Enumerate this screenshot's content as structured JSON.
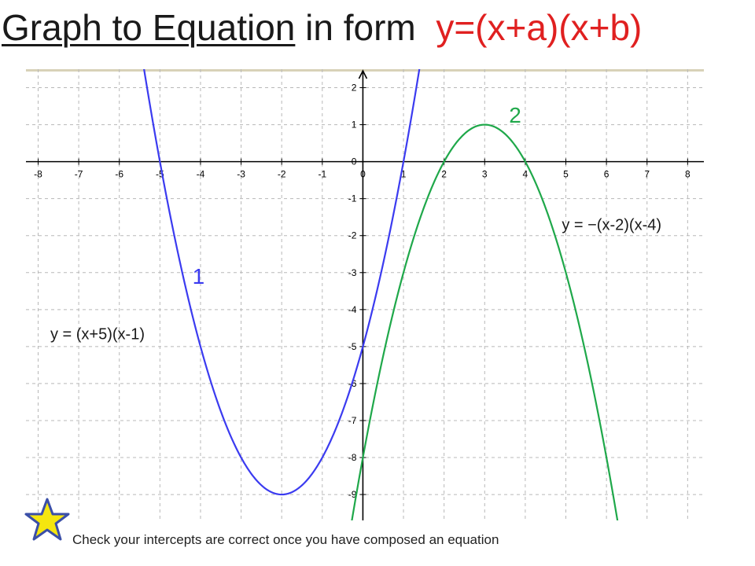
{
  "slide": {
    "title_main": "Graph to Equation",
    "title_rest": "in form",
    "title_form": "y=(x+a)(x+b)",
    "footer": "Check your intercepts are correct once you have composed an equation",
    "colors": {
      "title": "#1a1a1a",
      "form": "#e02020",
      "star_fill": "#f5e60f",
      "star_stroke": "#3b4fa8"
    }
  },
  "chart_data": {
    "type": "line",
    "xlim": [
      -8.3,
      8.4
    ],
    "ylim": [
      -9.7,
      2.5
    ],
    "grid": true,
    "x_ticks": [
      "-8",
      "-7",
      "-6",
      "-5",
      "-4",
      "-3",
      "-2",
      "-1",
      "0",
      "1",
      "2",
      "3",
      "4",
      "5",
      "6",
      "7",
      "8"
    ],
    "y_ticks": [
      "2",
      "1",
      "0",
      "-1",
      "-2",
      "-3",
      "-4",
      "-5",
      "-6",
      "-7",
      "-8",
      "-9"
    ],
    "series": [
      {
        "name": "y = (x+5)(x-1)",
        "number": "1",
        "color": "#3b3bf0",
        "sign": 1,
        "roots": [
          -5,
          1
        ],
        "vertex": [
          -2,
          -9
        ],
        "label": "y = (x+5)(x-1)",
        "label_at": [
          -7.7,
          -4.8
        ],
        "number_at": [
          -4.2,
          -3.3
        ]
      },
      {
        "name": "y = −(x-2)(x-4)",
        "number": "2",
        "color": "#1fa84a",
        "sign": -1,
        "roots": [
          2,
          4
        ],
        "vertex": [
          3,
          1
        ],
        "label": "y = −(x-2)(x-4)",
        "label_at": [
          4.9,
          -1.85
        ],
        "number_at": [
          3.6,
          1.05
        ]
      }
    ]
  }
}
